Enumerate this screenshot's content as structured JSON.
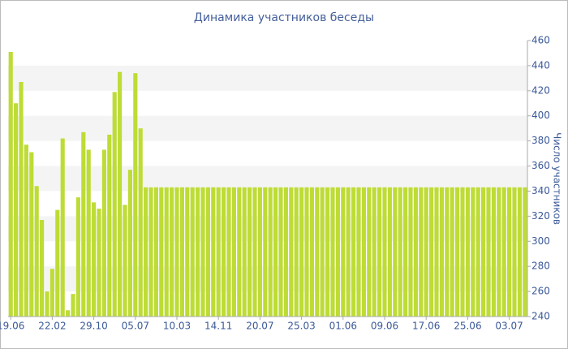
{
  "chart_data": {
    "type": "bar",
    "title": "Динамика участников беседы",
    "y_label": "Число участников",
    "color": "#bddc35",
    "ylim": [
      240,
      460
    ],
    "yticks": [
      240,
      260,
      280,
      300,
      320,
      340,
      360,
      380,
      400,
      420,
      440,
      460
    ],
    "grid_bands": true,
    "categories": [
      "19.06",
      null,
      null,
      null,
      null,
      null,
      null,
      null,
      "22.02",
      null,
      null,
      null,
      null,
      null,
      null,
      null,
      "29.10",
      null,
      null,
      null,
      null,
      null,
      null,
      null,
      "05.07",
      null,
      null,
      null,
      null,
      null,
      null,
      null,
      "10.03",
      null,
      null,
      null,
      null,
      null,
      null,
      null,
      "14.11",
      null,
      null,
      null,
      null,
      null,
      null,
      null,
      "20.07",
      null,
      null,
      null,
      null,
      null,
      null,
      null,
      "25.03",
      null,
      null,
      null,
      null,
      null,
      null,
      null,
      "01.06",
      null,
      null,
      null,
      null,
      null,
      null,
      null,
      "09.06",
      null,
      null,
      null,
      null,
      null,
      null,
      null,
      "17.06",
      null,
      null,
      null,
      null,
      null,
      null,
      null,
      "25.06",
      null,
      null,
      null,
      null,
      null,
      null,
      null,
      "03.07",
      null,
      null,
      null
    ],
    "values": [
      451,
      410,
      427,
      377,
      371,
      344,
      317,
      260,
      278,
      325,
      382,
      245,
      258,
      335,
      387,
      373,
      331,
      326,
      373,
      385,
      419,
      435,
      329,
      357,
      434,
      390,
      343,
      343,
      343,
      343,
      343,
      343,
      343,
      343,
      343,
      343,
      343,
      343,
      343,
      343,
      343,
      343,
      343,
      343,
      343,
      343,
      343,
      343,
      343,
      343,
      343,
      343,
      343,
      343,
      343,
      343,
      343,
      343,
      343,
      343,
      343,
      343,
      343,
      343,
      343,
      343,
      343,
      343,
      343,
      343,
      343,
      343,
      343,
      343,
      343,
      343,
      343,
      343,
      343,
      343,
      343,
      343,
      343,
      343,
      343,
      343,
      343,
      343,
      343,
      343,
      343,
      343,
      343,
      343,
      343,
      343,
      343,
      343,
      343,
      343
    ]
  }
}
